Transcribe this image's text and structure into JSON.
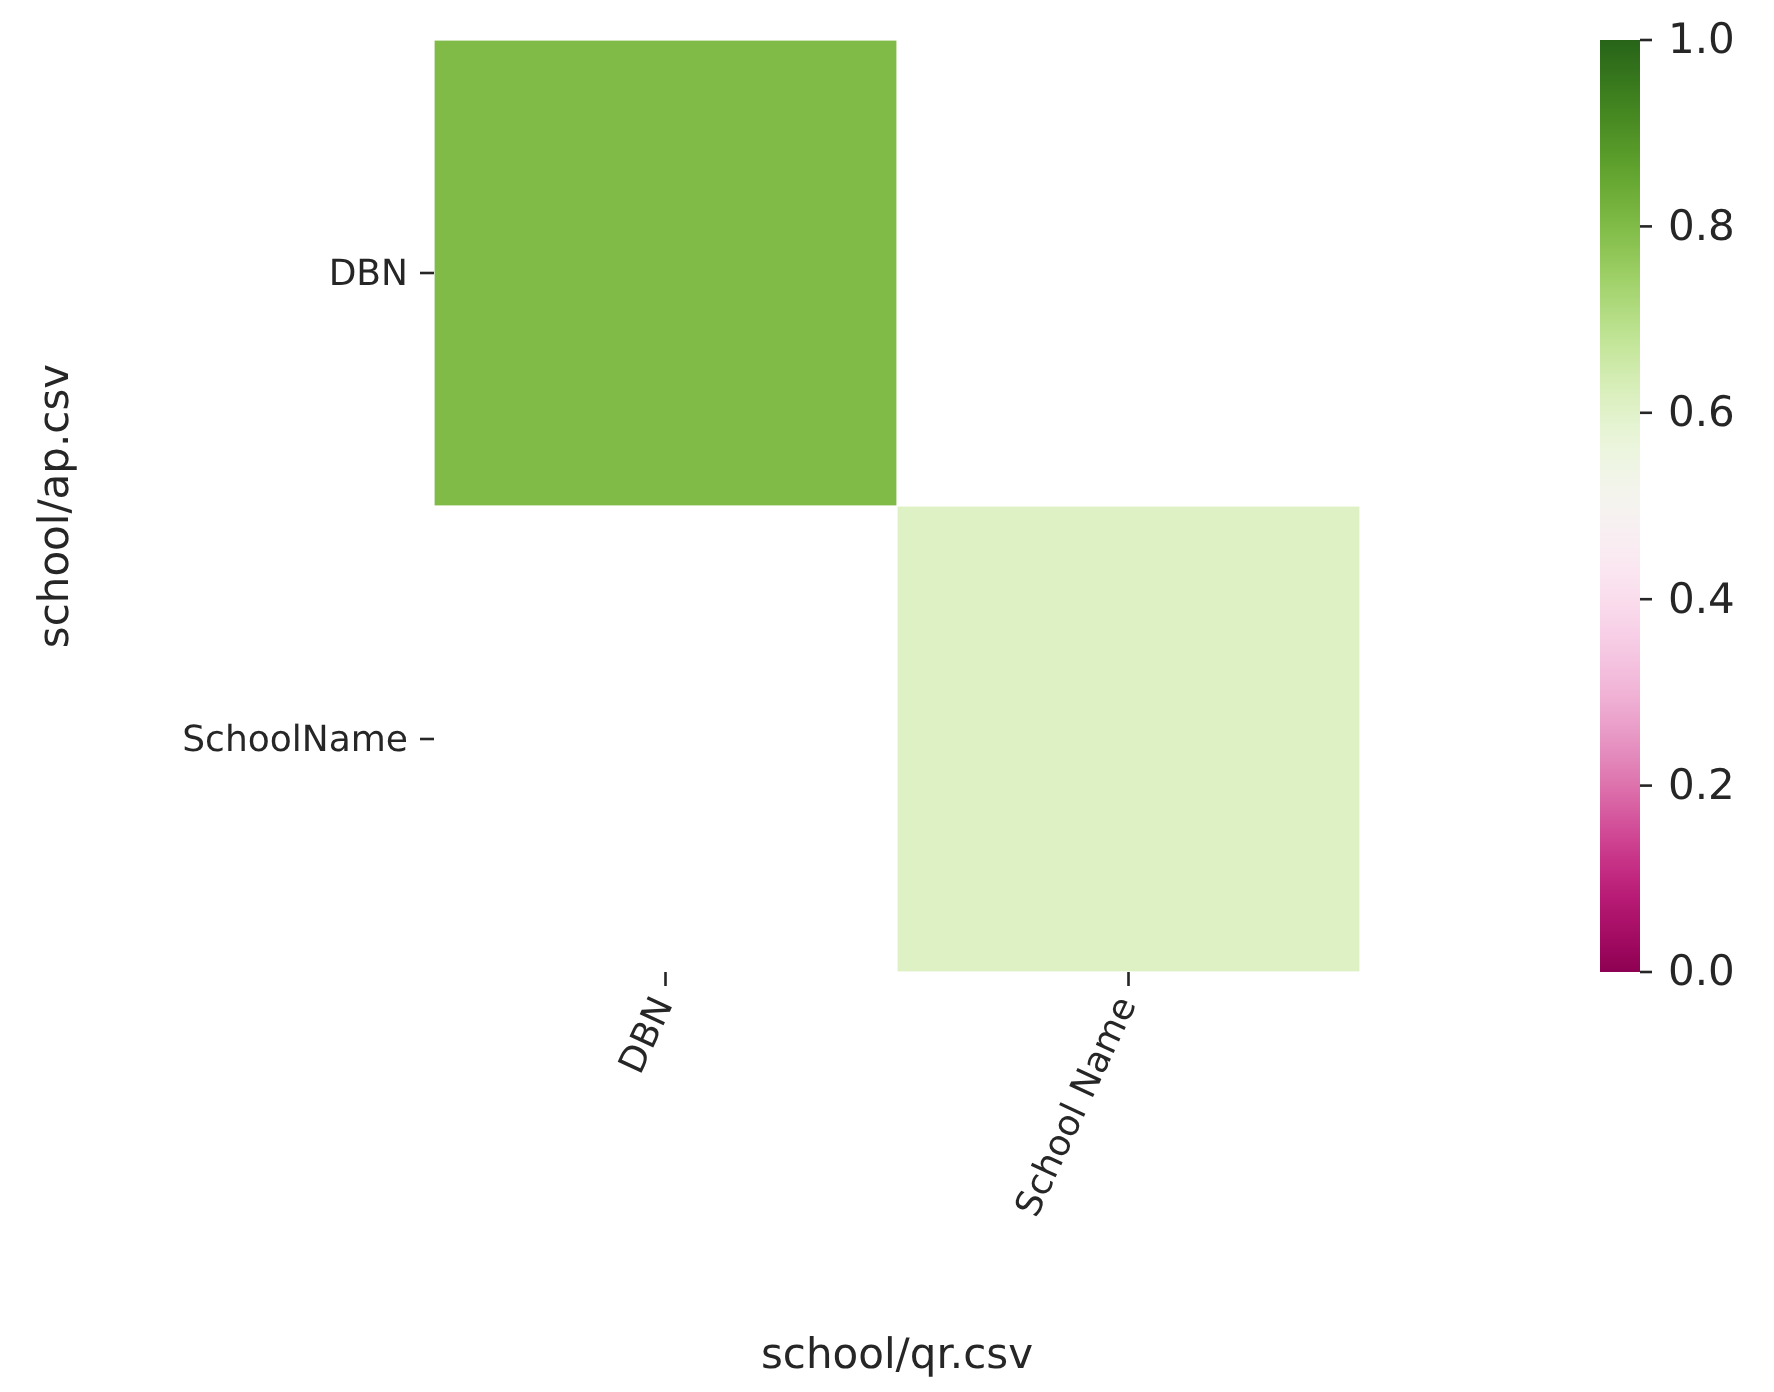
{
  "chart_data": {
    "type": "heatmap",
    "xlabel": "school/qr.csv",
    "ylabel": "school/ap.csv",
    "categories": [
      "DBN",
      "School Name"
    ],
    "y_categories": [
      "DBN",
      "SchoolName"
    ],
    "cells": [
      [
        0.8,
        null
      ],
      [
        null,
        0.61
      ]
    ],
    "clim": [
      0,
      1
    ],
    "cticks": [
      {
        "value": 0,
        "label": "0.0"
      },
      0.2,
      0.4,
      0.6,
      0.8,
      {
        "value": 1,
        "label": "1.0"
      }
    ]
  }
}
